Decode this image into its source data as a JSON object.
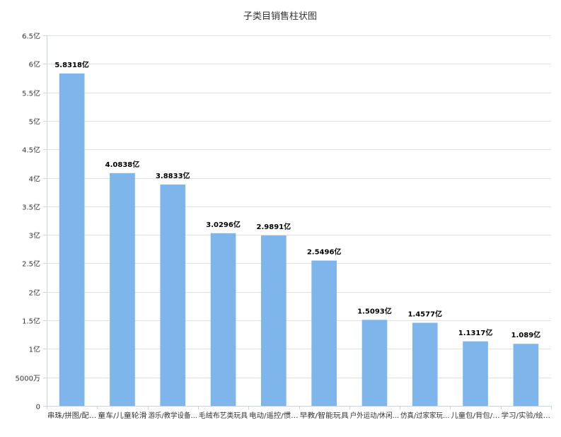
{
  "chart_data": {
    "type": "bar",
    "title": "子类目销售柱状图",
    "categories": [
      "串珠/拼图/配…",
      "童车/儿童轮滑",
      "游乐/教学设备…",
      "毛绒布艺类玩具",
      "电动/遥控/惯…",
      "早教/智能玩具",
      "户外运动/休闲…",
      "仿真/过家家玩…",
      "儿童包/背包/…",
      "学习/实验/绘…"
    ],
    "values": [
      58318,
      40838,
      38833,
      30296,
      29891,
      25496,
      15093,
      14577,
      11317,
      10890
    ],
    "value_unit": "万",
    "data_labels": [
      "5.8318亿",
      "4.0838亿",
      "3.8833亿",
      "3.0296亿",
      "2.9891亿",
      "2.5496亿",
      "1.5093亿",
      "1.4577亿",
      "1.1317亿",
      "1.089亿"
    ],
    "yticks": [
      {
        "value": 0,
        "label": "0"
      },
      {
        "value": 5000,
        "label": "5000万"
      },
      {
        "value": 10000,
        "label": "1亿"
      },
      {
        "value": 15000,
        "label": "1.5亿"
      },
      {
        "value": 20000,
        "label": "2亿"
      },
      {
        "value": 25000,
        "label": "2.5亿"
      },
      {
        "value": 30000,
        "label": "3亿"
      },
      {
        "value": 35000,
        "label": "3.5亿"
      },
      {
        "value": 40000,
        "label": "4亿"
      },
      {
        "value": 45000,
        "label": "4.5亿"
      },
      {
        "value": 50000,
        "label": "5亿"
      },
      {
        "value": 55000,
        "label": "5.5亿"
      },
      {
        "value": 60000,
        "label": "6亿"
      },
      {
        "value": 65000,
        "label": "6.5亿"
      }
    ],
    "ylim": [
      0,
      65000
    ],
    "xlabel": "",
    "ylabel": "",
    "grid": true,
    "legend": "none",
    "colors": {
      "bar": "#7eb5ea",
      "grid": "#e0e0e0",
      "axis": "#c8d6e4",
      "text": "#333333",
      "label": "#000000"
    }
  }
}
